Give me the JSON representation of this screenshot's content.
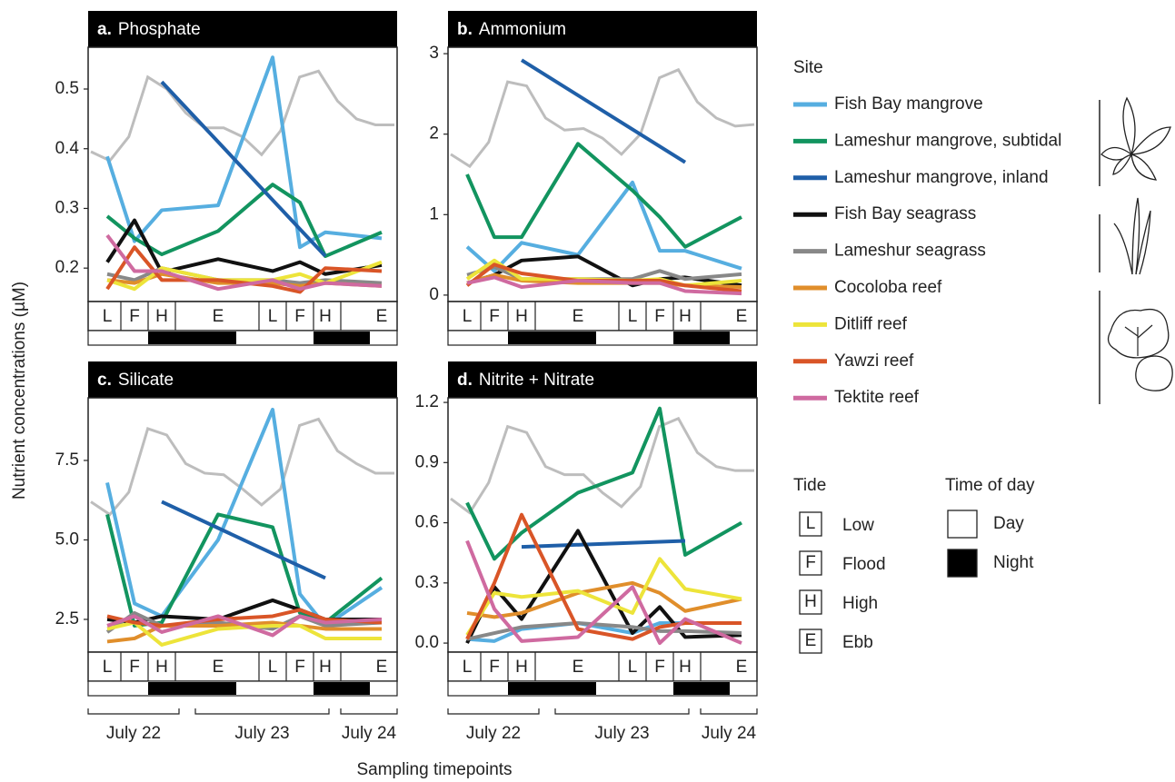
{
  "chart_data": [
    {
      "type": "line",
      "label": "a.",
      "title": "Phosphate",
      "categories": [
        "L",
        "F",
        "H",
        "E",
        "L",
        "F",
        "H",
        "E"
      ],
      "ylim": [
        0.144,
        0.57
      ],
      "yticks": [
        0.2,
        0.3,
        0.4,
        0.5
      ],
      "tide_trace": {
        "color": "#bdbdbd",
        "values": [
          0.395,
          0.38,
          0.42,
          0.52,
          0.5,
          0.46,
          0.435,
          0.435,
          0.42,
          0.39,
          0.43,
          0.52,
          0.53,
          0.48,
          0.45,
          0.44,
          0.44
        ]
      },
      "series": [
        {
          "values": [
            0.387,
            0.245,
            0.297,
            0.305,
            0.553,
            0.235,
            0.26,
            0.25
          ]
        },
        {
          "values": [
            0.287,
            0.25,
            0.223,
            0.262,
            0.34,
            0.31,
            0.22,
            0.26
          ]
        },
        {
          "values": [
            null,
            null,
            0.512,
            null,
            null,
            null,
            0.22,
            null
          ]
        },
        {
          "values": [
            0.21,
            0.28,
            0.193,
            0.215,
            0.195,
            0.21,
            0.19,
            0.205
          ]
        },
        {
          "values": [
            0.19,
            0.18,
            0.2,
            0.18,
            0.18,
            0.175,
            0.18,
            0.175
          ]
        },
        {
          "values": [
            0.18,
            0.175,
            0.19,
            0.175,
            0.175,
            0.17,
            0.175,
            0.17
          ]
        },
        {
          "values": [
            0.18,
            0.165,
            0.2,
            0.18,
            0.18,
            0.19,
            0.175,
            0.21
          ]
        },
        {
          "values": [
            0.165,
            0.235,
            0.18,
            0.18,
            0.17,
            0.16,
            0.2,
            0.195
          ]
        },
        {
          "values": [
            0.255,
            0.195,
            0.195,
            0.165,
            0.18,
            0.165,
            0.175,
            0.17
          ]
        }
      ]
    },
    {
      "type": "line",
      "label": "b.",
      "title": "Ammonium",
      "categories": [
        "L",
        "F",
        "H",
        "E",
        "L",
        "F",
        "H",
        "E"
      ],
      "ylim": [
        -0.08,
        3.08
      ],
      "yticks": [
        0,
        1,
        2,
        3
      ],
      "tide_trace": {
        "color": "#bdbdbd",
        "values": [
          1.75,
          1.6,
          1.9,
          2.65,
          2.6,
          2.2,
          2.05,
          2.07,
          1.95,
          1.75,
          2.0,
          2.7,
          2.8,
          2.4,
          2.2,
          2.1,
          2.12
        ]
      },
      "series": [
        {
          "values": [
            0.6,
            0.3,
            0.65,
            0.5,
            1.4,
            0.55,
            0.55,
            0.33
          ]
        },
        {
          "values": [
            1.5,
            0.72,
            0.72,
            1.88,
            1.3,
            0.97,
            0.6,
            0.97
          ]
        },
        {
          "values": [
            null,
            null,
            2.92,
            null,
            null,
            null,
            1.65,
            null
          ]
        },
        {
          "values": [
            0.15,
            0.25,
            0.43,
            0.48,
            0.12,
            0.2,
            0.22,
            0.12
          ]
        },
        {
          "values": [
            0.25,
            0.35,
            0.2,
            0.2,
            0.2,
            0.3,
            0.2,
            0.26
          ]
        },
        {
          "values": [
            0.15,
            0.25,
            0.18,
            0.15,
            0.15,
            0.15,
            0.12,
            0.1
          ]
        },
        {
          "values": [
            0.2,
            0.43,
            0.2,
            0.2,
            0.18,
            0.2,
            0.12,
            0.18
          ]
        },
        {
          "values": [
            0.12,
            0.38,
            0.27,
            0.18,
            0.18,
            0.18,
            0.12,
            0.05
          ]
        },
        {
          "values": [
            0.15,
            0.22,
            0.1,
            0.18,
            0.15,
            0.15,
            0.05,
            0.02
          ]
        }
      ]
    },
    {
      "type": "line",
      "label": "c.",
      "title": "Silicate",
      "categories": [
        "L",
        "F",
        "H",
        "E",
        "L",
        "F",
        "H",
        "E"
      ],
      "ylim": [
        1.47,
        9.47
      ],
      "yticks": [
        2.5,
        {
          "value": 5,
          "label": "5.0"
        },
        7.5
      ],
      "tide_trace": {
        "color": "#bdbdbd",
        "values": [
          6.2,
          5.8,
          6.5,
          8.5,
          8.3,
          7.4,
          7.1,
          7.05,
          6.6,
          6.1,
          6.6,
          8.6,
          8.8,
          7.8,
          7.4,
          7.1,
          7.1
        ]
      },
      "series": [
        {
          "values": [
            6.8,
            3.0,
            2.6,
            5.0,
            9.1,
            3.3,
            2.3,
            3.5
          ]
        },
        {
          "values": [
            5.8,
            2.3,
            2.4,
            5.8,
            5.4,
            2.7,
            2.4,
            3.8
          ]
        },
        {
          "values": [
            null,
            null,
            6.2,
            null,
            null,
            null,
            3.8,
            null
          ]
        },
        {
          "values": [
            2.5,
            2.4,
            2.6,
            2.5,
            3.1,
            2.8,
            2.5,
            2.5
          ]
        },
        {
          "values": [
            2.1,
            2.7,
            2.3,
            2.4,
            2.2,
            2.6,
            2.3,
            2.4
          ]
        },
        {
          "values": [
            1.8,
            1.9,
            2.3,
            2.3,
            2.4,
            2.3,
            2.2,
            2.2
          ]
        },
        {
          "values": [
            2.2,
            2.4,
            1.7,
            2.2,
            2.3,
            2.3,
            1.9,
            1.9
          ]
        },
        {
          "values": [
            2.6,
            2.4,
            2.3,
            2.5,
            2.6,
            2.8,
            2.5,
            2.4
          ]
        },
        {
          "values": [
            2.3,
            2.6,
            2.1,
            2.6,
            2.0,
            2.6,
            2.4,
            2.5
          ]
        }
      ]
    },
    {
      "type": "line",
      "label": "d.",
      "title": "Nitrite + Nitrate",
      "categories": [
        "L",
        "F",
        "H",
        "E",
        "L",
        "F",
        "H",
        "E"
      ],
      "ylim": [
        -0.045,
        1.223
      ],
      "yticks": [
        {
          "value": 0,
          "label": "0.0"
        },
        0.3,
        0.6,
        0.9,
        1.2
      ],
      "tide_trace": {
        "color": "#bdbdbd",
        "values": [
          0.72,
          0.65,
          0.8,
          1.08,
          1.05,
          0.88,
          0.84,
          0.84,
          0.75,
          0.68,
          0.78,
          1.08,
          1.12,
          0.95,
          0.88,
          0.86,
          0.86
        ]
      },
      "series": [
        {
          "values": [
            0.02,
            0.01,
            0.07,
            0.1,
            0.05,
            0.1,
            0.1,
            0.1
          ]
        },
        {
          "values": [
            0.7,
            0.42,
            0.55,
            0.75,
            0.85,
            1.17,
            0.44,
            0.6
          ]
        },
        {
          "values": [
            null,
            null,
            0.48,
            null,
            null,
            null,
            0.51,
            null
          ]
        },
        {
          "values": [
            0.0,
            0.28,
            0.12,
            0.56,
            0.05,
            0.18,
            0.03,
            0.04
          ]
        },
        {
          "values": [
            0.02,
            0.05,
            0.08,
            0.1,
            0.08,
            0.06,
            0.06,
            0.05
          ]
        },
        {
          "values": [
            0.15,
            0.13,
            0.15,
            0.25,
            0.3,
            0.25,
            0.16,
            0.22
          ]
        },
        {
          "values": [
            0.04,
            0.25,
            0.23,
            0.26,
            0.15,
            0.42,
            0.27,
            0.22
          ]
        },
        {
          "values": [
            0.02,
            0.3,
            0.64,
            0.07,
            0.02,
            0.08,
            0.1,
            0.1
          ]
        },
        {
          "values": [
            0.51,
            0.17,
            0.01,
            0.03,
            0.28,
            0.0,
            0.12,
            0.0
          ]
        }
      ]
    }
  ],
  "y_label": "Nutrient concentrations (µM)",
  "x_label": "Sampling timepoints",
  "dates": [
    "July 22",
    "July 23",
    "July 24"
  ],
  "legend": {
    "title": "Site",
    "items": [
      {
        "name": "Fish Bay mangrove",
        "color": "#56aee0"
      },
      {
        "name": "Lameshur mangrove, subtidal",
        "color": "#12945f"
      },
      {
        "name": "Lameshur mangrove, inland",
        "color": "#1f5fa8"
      },
      {
        "name": "Fish Bay seagrass",
        "color": "#111111"
      },
      {
        "name": "Lameshur seagrass",
        "color": "#888888"
      },
      {
        "name": "Cocoloba reef",
        "color": "#e08e2b"
      },
      {
        "name": "Ditliff reef",
        "color": "#ede43a"
      },
      {
        "name": "Yawzi reef",
        "color": "#d95527"
      },
      {
        "name": "Tektite reef",
        "color": "#cf6aa0"
      }
    ]
  },
  "tide_legend": {
    "title": "Tide",
    "items": [
      {
        "symbol": "L",
        "label": "Low"
      },
      {
        "symbol": "F",
        "label": "Flood"
      },
      {
        "symbol": "H",
        "label": "High"
      },
      {
        "symbol": "E",
        "label": "Ebb"
      }
    ]
  },
  "time_legend": {
    "title": "Time of day",
    "items": [
      "Day",
      "Night"
    ]
  }
}
